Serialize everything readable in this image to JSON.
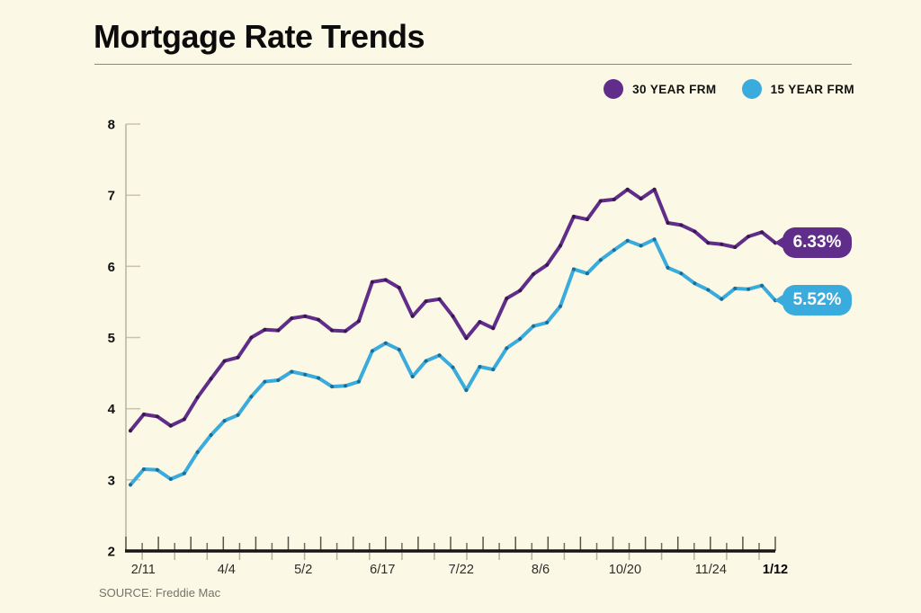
{
  "header": {
    "title": "Mortgage Rate Trends"
  },
  "legend": {
    "position": "top-right",
    "items": [
      {
        "label": "30 YEAR FRM",
        "color": "#612d8a"
      },
      {
        "label": "15 YEAR FRM",
        "color": "#39abdc"
      }
    ]
  },
  "endpoint_badges": [
    {
      "series": "30 YEAR FRM",
      "label": "6.33%",
      "color": "#612d8a"
    },
    {
      "series": "15 YEAR FRM",
      "label": "5.52%",
      "color": "#39abdc"
    }
  ],
  "footer": {
    "source": "SOURCE: Freddie Mac"
  },
  "colors": {
    "background": "#fbf8e5",
    "axis": "#161616",
    "tick_major": "#56544b",
    "tick_minor": "#b5b29b",
    "y_tick": "#c9c5ab",
    "y_axis_line": "#b7b49c"
  },
  "chart_data": {
    "type": "line",
    "title": "Mortgage Rate Trends",
    "xlabel": "",
    "ylabel": "",
    "ylim": [
      2,
      8
    ],
    "y_ticks": [
      2,
      3,
      4,
      5,
      6,
      7,
      8
    ],
    "grid": false,
    "legend_position": "top-right",
    "x_labels": [
      {
        "text": "2/11",
        "pos": 0.02
      },
      {
        "text": "4/4",
        "pos": 0.149
      },
      {
        "text": "5/2",
        "pos": 0.268
      },
      {
        "text": "6/17",
        "pos": 0.391
      },
      {
        "text": "7/22",
        "pos": 0.513
      },
      {
        "text": "8/6",
        "pos": 0.636
      },
      {
        "text": "10/20",
        "pos": 0.767
      },
      {
        "text": "11/24",
        "pos": 0.9
      },
      {
        "text": "1/12",
        "pos": 1.0,
        "bold": true
      }
    ],
    "series": [
      {
        "name": "30 YEAR FRM",
        "color": "#612d8a",
        "dot_color": "#37194f",
        "end_label": "6.33%",
        "values": [
          3.69,
          3.92,
          3.89,
          3.76,
          3.85,
          4.16,
          4.42,
          4.67,
          4.72,
          5.0,
          5.11,
          5.1,
          5.27,
          5.3,
          5.25,
          5.1,
          5.09,
          5.23,
          5.78,
          5.81,
          5.7,
          5.3,
          5.51,
          5.54,
          5.3,
          4.99,
          5.22,
          5.13,
          5.55,
          5.66,
          5.89,
          6.02,
          6.29,
          6.7,
          6.66,
          6.92,
          6.94,
          7.08,
          6.95,
          7.08,
          6.61,
          6.58,
          6.49,
          6.33,
          6.31,
          6.27,
          6.42,
          6.48,
          6.33
        ]
      },
      {
        "name": "15 YEAR FRM",
        "color": "#39abdc",
        "dot_color": "#1e6b94",
        "end_label": "5.52%",
        "values": [
          2.93,
          3.15,
          3.14,
          3.01,
          3.09,
          3.39,
          3.63,
          3.83,
          3.91,
          4.17,
          4.38,
          4.4,
          4.52,
          4.48,
          4.43,
          4.31,
          4.32,
          4.38,
          4.81,
          4.92,
          4.83,
          4.45,
          4.67,
          4.75,
          4.58,
          4.26,
          4.59,
          4.55,
          4.85,
          4.98,
          5.16,
          5.21,
          5.44,
          5.96,
          5.9,
          6.09,
          6.23,
          6.36,
          6.29,
          6.38,
          5.98,
          5.9,
          5.76,
          5.67,
          5.54,
          5.69,
          5.68,
          5.73,
          5.52
        ]
      }
    ]
  }
}
